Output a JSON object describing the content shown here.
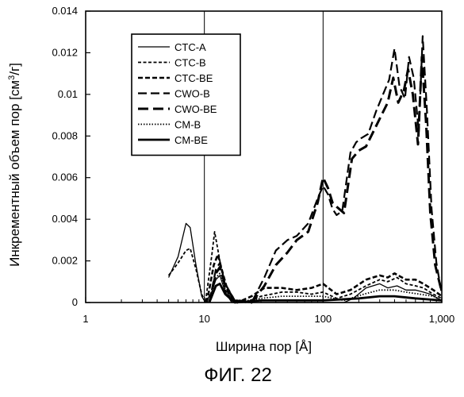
{
  "caption": "ФИГ. 22",
  "chart_data": {
    "type": "line",
    "xlabel": "Ширина пор [Å]",
    "ylabel_prefix": "Инкрементный объем пор [см",
    "ylabel_sup": "3",
    "ylabel_suffix": "/г]",
    "x_scale": "log",
    "xlim": [
      1,
      1000
    ],
    "ylim": [
      0,
      0.014
    ],
    "x_ticks": [
      1,
      10,
      100,
      1000
    ],
    "x_tick_labels": [
      "1",
      "10",
      "100",
      "1,000"
    ],
    "y_ticks": [
      0,
      0.002,
      0.004,
      0.006,
      0.008,
      0.01,
      0.012,
      0.014
    ],
    "y_tick_labels": [
      "0",
      "0.002",
      "0.004",
      "0.006",
      "0.008",
      "0.01",
      "0.012",
      "0.014"
    ],
    "vertical_gridlines_at": [
      10,
      100
    ],
    "legend_position": "top-left",
    "series": [
      {
        "name": "CTC-A",
        "style": "solid-thin",
        "points": [
          [
            5.0,
            0.0012
          ],
          [
            6.0,
            0.0022
          ],
          [
            7.0,
            0.0038
          ],
          [
            7.6,
            0.0036
          ],
          [
            8.5,
            0.0018
          ],
          [
            9.5,
            0.0003
          ],
          [
            10.2,
            0.0
          ],
          [
            11.5,
            0.0005
          ],
          [
            12.5,
            0.0011
          ],
          [
            13.5,
            0.0013
          ],
          [
            15,
            0.0005
          ],
          [
            17,
            0.0
          ],
          [
            30,
            0.0
          ],
          [
            60,
            0.0
          ],
          [
            100,
            0.0
          ],
          [
            150,
            0.0
          ],
          [
            180,
            0.0002
          ],
          [
            230,
            0.0007
          ],
          [
            300,
            0.0009
          ],
          [
            350,
            0.0007
          ],
          [
            420,
            0.0008
          ],
          [
            500,
            0.0006
          ],
          [
            600,
            0.0006
          ],
          [
            700,
            0.0005
          ],
          [
            800,
            0.0004
          ],
          [
            1000,
            0.0001
          ]
        ]
      },
      {
        "name": "CTC-B",
        "style": "short-dash",
        "points": [
          [
            5.0,
            0.0013
          ],
          [
            6.0,
            0.0019
          ],
          [
            7.0,
            0.0025
          ],
          [
            7.6,
            0.0026
          ],
          [
            8.5,
            0.0016
          ],
          [
            9.5,
            0.0004
          ],
          [
            10.2,
            0.0
          ],
          [
            11.5,
            0.0022
          ],
          [
            12.2,
            0.0034
          ],
          [
            13.5,
            0.002
          ],
          [
            15,
            0.0006
          ],
          [
            17,
            0.0001
          ],
          [
            22,
            0.0
          ],
          [
            30,
            0.0003
          ],
          [
            45,
            0.0005
          ],
          [
            60,
            0.0005
          ],
          [
            80,
            0.0004
          ],
          [
            100,
            0.0005
          ],
          [
            130,
            0.0002
          ],
          [
            170,
            0.0004
          ],
          [
            230,
            0.0008
          ],
          [
            300,
            0.0011
          ],
          [
            350,
            0.001
          ],
          [
            420,
            0.0012
          ],
          [
            500,
            0.0009
          ],
          [
            600,
            0.0008
          ],
          [
            700,
            0.0007
          ],
          [
            850,
            0.0004
          ],
          [
            1000,
            0.0002
          ]
        ]
      },
      {
        "name": "CTC-BE",
        "style": "medium-dash",
        "points": [
          [
            10.5,
            0.0
          ],
          [
            12,
            0.0018
          ],
          [
            13,
            0.0023
          ],
          [
            14,
            0.0016
          ],
          [
            16,
            0.0004
          ],
          [
            19,
            0.0
          ],
          [
            25,
            0.0003
          ],
          [
            32,
            0.0007
          ],
          [
            45,
            0.0007
          ],
          [
            60,
            0.0006
          ],
          [
            80,
            0.0007
          ],
          [
            100,
            0.0009
          ],
          [
            130,
            0.0004
          ],
          [
            170,
            0.0006
          ],
          [
            230,
            0.0011
          ],
          [
            300,
            0.0013
          ],
          [
            350,
            0.0012
          ],
          [
            400,
            0.0014
          ],
          [
            500,
            0.0011
          ],
          [
            600,
            0.0011
          ],
          [
            700,
            0.0009
          ],
          [
            850,
            0.0006
          ],
          [
            1000,
            0.0003
          ]
        ]
      },
      {
        "name": "CWO-B",
        "style": "long-dash",
        "points": [
          [
            11,
            0.0
          ],
          [
            12.5,
            0.0016
          ],
          [
            13.5,
            0.0019
          ],
          [
            15,
            0.0009
          ],
          [
            18,
            0.0001
          ],
          [
            25,
            0.0
          ],
          [
            32,
            0.0012
          ],
          [
            40,
            0.0025
          ],
          [
            50,
            0.003
          ],
          [
            60,
            0.0032
          ],
          [
            75,
            0.0038
          ],
          [
            90,
            0.005
          ],
          [
            100,
            0.0056
          ],
          [
            110,
            0.0052
          ],
          [
            120,
            0.0045
          ],
          [
            130,
            0.0042
          ],
          [
            145,
            0.0044
          ],
          [
            170,
            0.0072
          ],
          [
            190,
            0.0077
          ],
          [
            210,
            0.0079
          ],
          [
            240,
            0.0081
          ],
          [
            280,
            0.0092
          ],
          [
            320,
            0.01
          ],
          [
            360,
            0.0107
          ],
          [
            400,
            0.0122
          ],
          [
            440,
            0.0104
          ],
          [
            490,
            0.0098
          ],
          [
            530,
            0.0118
          ],
          [
            580,
            0.0108
          ],
          [
            640,
            0.0082
          ],
          [
            690,
            0.0128
          ],
          [
            750,
            0.0092
          ],
          [
            820,
            0.0045
          ],
          [
            900,
            0.0019
          ],
          [
            1000,
            0.0004
          ]
        ]
      },
      {
        "name": "CWO-BE",
        "style": "long-dash-heavy",
        "points": [
          [
            11,
            0.0
          ],
          [
            12.5,
            0.0014
          ],
          [
            13.5,
            0.0017
          ],
          [
            15,
            0.0008
          ],
          [
            18,
            0.0001
          ],
          [
            25,
            0.0
          ],
          [
            32,
            0.0008
          ],
          [
            40,
            0.0018
          ],
          [
            50,
            0.0024
          ],
          [
            60,
            0.003
          ],
          [
            75,
            0.0034
          ],
          [
            90,
            0.0048
          ],
          [
            100,
            0.006
          ],
          [
            110,
            0.0055
          ],
          [
            120,
            0.0048
          ],
          [
            130,
            0.0046
          ],
          [
            150,
            0.0043
          ],
          [
            175,
            0.0069
          ],
          [
            200,
            0.0073
          ],
          [
            230,
            0.0075
          ],
          [
            270,
            0.0083
          ],
          [
            310,
            0.009
          ],
          [
            350,
            0.0096
          ],
          [
            390,
            0.0108
          ],
          [
            430,
            0.0096
          ],
          [
            480,
            0.0102
          ],
          [
            520,
            0.0112
          ],
          [
            570,
            0.01
          ],
          [
            630,
            0.0076
          ],
          [
            680,
            0.0118
          ],
          [
            740,
            0.0085
          ],
          [
            800,
            0.0043
          ],
          [
            880,
            0.0018
          ],
          [
            1000,
            0.0005
          ]
        ]
      },
      {
        "name": "CM-B",
        "style": "dotted",
        "points": [
          [
            11,
            0.0
          ],
          [
            12.5,
            0.0012
          ],
          [
            13.5,
            0.0014
          ],
          [
            15,
            0.0006
          ],
          [
            18,
            0.0
          ],
          [
            30,
            0.0002
          ],
          [
            45,
            0.0003
          ],
          [
            60,
            0.0003
          ],
          [
            80,
            0.0003
          ],
          [
            100,
            0.0003
          ],
          [
            150,
            0.0001
          ],
          [
            220,
            0.0004
          ],
          [
            300,
            0.0006
          ],
          [
            400,
            0.0006
          ],
          [
            500,
            0.0005
          ],
          [
            650,
            0.0004
          ],
          [
            850,
            0.0003
          ],
          [
            1000,
            0.0001
          ]
        ]
      },
      {
        "name": "CM-BE",
        "style": "solid-heavy",
        "points": [
          [
            11,
            0.0
          ],
          [
            12.5,
            0.0008
          ],
          [
            13.5,
            0.0009
          ],
          [
            15,
            0.0004
          ],
          [
            18,
            0.0
          ],
          [
            30,
            0.0001
          ],
          [
            60,
            0.0001
          ],
          [
            100,
            0.0001
          ],
          [
            200,
            0.0002
          ],
          [
            300,
            0.0003
          ],
          [
            400,
            0.0003
          ],
          [
            600,
            0.0002
          ],
          [
            1000,
            0.0001
          ]
        ]
      }
    ]
  }
}
